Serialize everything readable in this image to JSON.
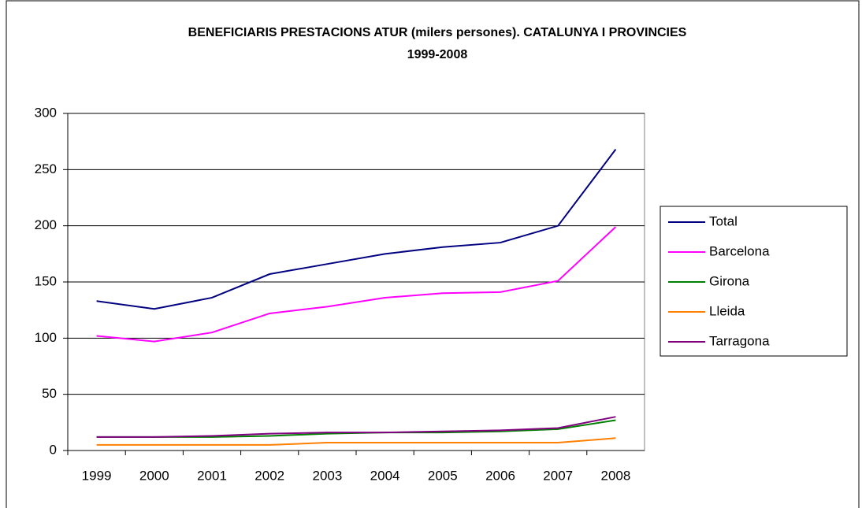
{
  "chart_data": {
    "type": "line",
    "title": [
      "BENEFICIARIS PRESTACIONS ATUR (milers persones). CATALUNYA I PROVINCIES",
      "1999-2008"
    ],
    "categories": [
      "1999",
      "2000",
      "2001",
      "2002",
      "2003",
      "2004",
      "2005",
      "2006",
      "2007",
      "2008"
    ],
    "series": [
      {
        "name": "Total",
        "color": "#000080",
        "values": [
          133,
          126,
          136,
          157,
          166,
          175,
          181,
          185,
          200,
          268
        ]
      },
      {
        "name": "Barcelona",
        "color": "#ff00ff",
        "values": [
          102,
          97,
          105,
          122,
          128,
          136,
          140,
          141,
          151,
          199
        ]
      },
      {
        "name": "Girona",
        "color": "#008000",
        "values": [
          12,
          12,
          12,
          13,
          15,
          16,
          16,
          17,
          19,
          27
        ]
      },
      {
        "name": "Lleida",
        "color": "#ff8000",
        "values": [
          5,
          5,
          5,
          5,
          7,
          7,
          7,
          7,
          7,
          11
        ]
      },
      {
        "name": "Tarragona",
        "color": "#800080",
        "values": [
          12,
          12,
          13,
          15,
          16,
          16,
          17,
          18,
          20,
          30
        ]
      }
    ],
    "ylim": [
      0,
      300
    ],
    "yticks": [
      0,
      50,
      100,
      150,
      200,
      250,
      300
    ],
    "grid": true,
    "legend": "right"
  }
}
